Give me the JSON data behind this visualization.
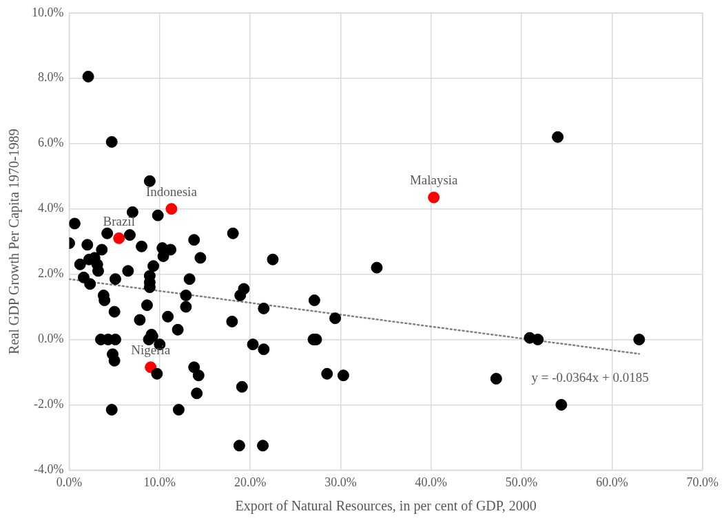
{
  "chart_data": {
    "type": "scatter",
    "xlabel": "Export of Natural Resources, in per cent of GDP, 2000",
    "ylabel": "Real GDP Growth Per Capita 1970-1989",
    "xlim": [
      0,
      70
    ],
    "xticks": [
      {
        "value": 0,
        "label": "0.0%"
      },
      {
        "value": 10,
        "label": "10.0%"
      },
      {
        "value": 20,
        "label": "20.0%"
      },
      {
        "value": 30,
        "label": "30.0%"
      },
      {
        "value": 40,
        "label": "40.0%"
      },
      {
        "value": 50,
        "label": "50.0%"
      },
      {
        "value": 60,
        "label": "60.0%"
      },
      {
        "value": 70,
        "label": "70.0%"
      }
    ],
    "ylim": [
      -4,
      10
    ],
    "yticks": [
      {
        "value": -4,
        "label": "-4.0%"
      },
      {
        "value": -2,
        "label": "-2.0%"
      },
      {
        "value": 0,
        "label": "0.0%"
      },
      {
        "value": 2,
        "label": "2.0%"
      },
      {
        "value": 4,
        "label": "4.0%"
      },
      {
        "value": 6,
        "label": "6.0%"
      },
      {
        "value": 8,
        "label": "8.0%"
      },
      {
        "value": 10,
        "label": "10.0%"
      }
    ],
    "grid": true,
    "legend": false,
    "marker": "circle",
    "series": [
      {
        "color": "#000000",
        "x": [
          0.0,
          0.6,
          2.1,
          4.7,
          8.9,
          7.0,
          9.8,
          4.2,
          6.7,
          2.0,
          8.0,
          3.6,
          10.3,
          11.2,
          13.8,
          18.1,
          10.4,
          14.5,
          22.5,
          1.2,
          2.2,
          2.8,
          3.1,
          3.2,
          9.3,
          6.5,
          34.0,
          1.6,
          5.1,
          8.9,
          8.9,
          8.9,
          2.3,
          13.3,
          19.3,
          18.9,
          3.8,
          3.9,
          12.9,
          12.9,
          21.5,
          27.1,
          29.4,
          8.6,
          5.0,
          7.8,
          10.9,
          18.0,
          12.0,
          9.1,
          3.5,
          4.3,
          5.1,
          8.8,
          9.2,
          10.0,
          20.3,
          21.5,
          27.0,
          27.3,
          50.9,
          51.8,
          63.0,
          4.8,
          5.0,
          9.7,
          13.8,
          14.3,
          14.1,
          19.1,
          28.5,
          30.3,
          47.2,
          54.4,
          4.7,
          12.1,
          18.8,
          21.4,
          54.0
        ],
        "values": [
          2.95,
          3.55,
          8.05,
          6.05,
          4.85,
          3.9,
          3.8,
          3.25,
          3.2,
          2.9,
          2.85,
          2.75,
          2.8,
          2.75,
          3.05,
          3.25,
          2.55,
          2.5,
          2.45,
          2.3,
          2.45,
          2.5,
          2.3,
          2.1,
          2.25,
          2.1,
          2.2,
          1.9,
          1.85,
          1.95,
          1.75,
          1.6,
          1.7,
          1.85,
          1.55,
          1.35,
          1.35,
          1.2,
          1.35,
          1.0,
          0.95,
          1.2,
          0.65,
          1.05,
          0.85,
          0.6,
          0.7,
          0.55,
          0.3,
          0.15,
          0.0,
          0.0,
          0.0,
          0.0,
          0.1,
          -0.15,
          -0.15,
          -0.3,
          0.0,
          0.0,
          0.05,
          0.0,
          0.0,
          -0.45,
          -0.65,
          -1.05,
          -0.85,
          -1.1,
          -1.65,
          -1.45,
          -1.05,
          -1.1,
          -1.2,
          -2.0,
          -2.15,
          -2.15,
          -3.25,
          -3.25,
          6.2
        ]
      },
      {
        "color": "#ff0000",
        "x": [
          5.5,
          11.3,
          9.0,
          40.3
        ],
        "values": [
          3.1,
          4.0,
          -0.85,
          4.35
        ]
      },
      {
        "type": "line",
        "color": "#808080",
        "line_style": "dotted",
        "marker": "none",
        "x": [
          0,
          63
        ],
        "values": [
          1.85,
          -0.44
        ]
      }
    ],
    "annotations": [
      {
        "text": "Brazil",
        "x": 5.5,
        "y": 3.1
      },
      {
        "text": "Indonesia",
        "x": 11.3,
        "y": 4.0
      },
      {
        "text": "Nigeria",
        "x": 9.0,
        "y": -0.85
      },
      {
        "text": "Malaysia",
        "x": 40.3,
        "y": 4.35
      },
      "y = -0.0364x + 0.0185"
    ]
  }
}
